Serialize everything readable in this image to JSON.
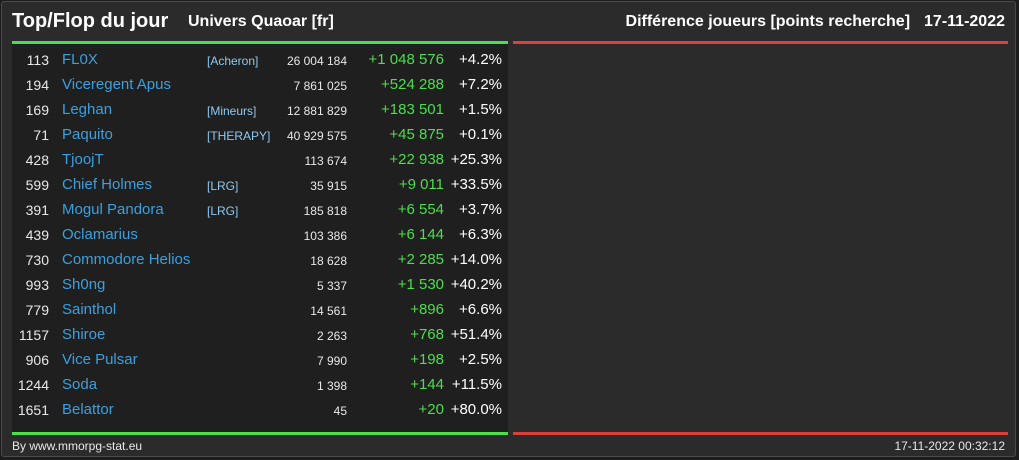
{
  "header": {
    "title": "Top/Flop du jour",
    "universe": "Univers Quaoar [fr]",
    "metric": "Différence joueurs [points recherche]",
    "date": "17-11-2022"
  },
  "players": [
    {
      "rank": "113",
      "name": "FL0X",
      "alliance": "[Acheron]",
      "points": "26 004 184",
      "diff": "+1 048 576",
      "pct": "+4.2%"
    },
    {
      "rank": "194",
      "name": "Viceregent Apus",
      "alliance": "",
      "points": "7 861 025",
      "diff": "+524 288",
      "pct": "+7.2%"
    },
    {
      "rank": "169",
      "name": "Leghan",
      "alliance": "[Mineurs]",
      "points": "12 881 829",
      "diff": "+183 501",
      "pct": "+1.5%"
    },
    {
      "rank": "71",
      "name": "Paquito",
      "alliance": "[THERAPY]",
      "points": "40 929 575",
      "diff": "+45 875",
      "pct": "+0.1%"
    },
    {
      "rank": "428",
      "name": "TjoojT",
      "alliance": "",
      "points": "113 674",
      "diff": "+22 938",
      "pct": "+25.3%"
    },
    {
      "rank": "599",
      "name": "Chief Holmes",
      "alliance": "[LRG]",
      "points": "35 915",
      "diff": "+9 011",
      "pct": "+33.5%"
    },
    {
      "rank": "391",
      "name": "Mogul Pandora",
      "alliance": "[LRG]",
      "points": "185 818",
      "diff": "+6 554",
      "pct": "+3.7%"
    },
    {
      "rank": "439",
      "name": "Oclamarius",
      "alliance": "",
      "points": "103 386",
      "diff": "+6 144",
      "pct": "+6.3%"
    },
    {
      "rank": "730",
      "name": "Commodore Helios",
      "alliance": "",
      "points": "18 628",
      "diff": "+2 285",
      "pct": "+14.0%"
    },
    {
      "rank": "993",
      "name": "Sh0ng",
      "alliance": "",
      "points": "5 337",
      "diff": "+1 530",
      "pct": "+40.2%"
    },
    {
      "rank": "779",
      "name": "Sainthol",
      "alliance": "",
      "points": "14 561",
      "diff": "+896",
      "pct": "+6.6%"
    },
    {
      "rank": "1157",
      "name": "Shiroe",
      "alliance": "",
      "points": "2 263",
      "diff": "+768",
      "pct": "+51.4%"
    },
    {
      "rank": "906",
      "name": "Vice Pulsar",
      "alliance": "",
      "points": "7 990",
      "diff": "+198",
      "pct": "+2.5%"
    },
    {
      "rank": "1244",
      "name": "Soda",
      "alliance": "",
      "points": "1 398",
      "diff": "+144",
      "pct": "+11.5%"
    },
    {
      "rank": "1651",
      "name": "Belattor",
      "alliance": "",
      "points": "45",
      "diff": "+20",
      "pct": "+80.0%"
    }
  ],
  "footer": {
    "source": "By www.mmorpg-stat.eu",
    "timestamp": "17-11-2022 00:32:12"
  },
  "colors": {
    "top_bar": "#4ddd4d",
    "flop_bar": "#d9423b",
    "player_name": "#3aa0e0",
    "alliance": "#8ecaf0",
    "gain": "#4ddd4d"
  }
}
